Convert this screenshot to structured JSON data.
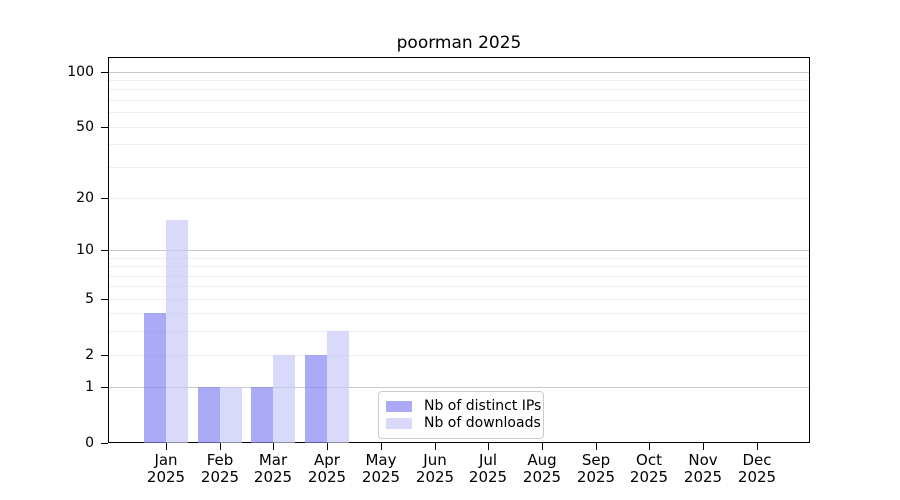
{
  "title": "poorman 2025",
  "chart_data": {
    "type": "bar",
    "title": "poorman 2025",
    "categories": [
      "Jan 2025",
      "Feb 2025",
      "Mar 2025",
      "Apr 2025",
      "May 2025",
      "Jun 2025",
      "Jul 2025",
      "Aug 2025",
      "Sep 2025",
      "Oct 2025",
      "Nov 2025",
      "Dec 2025"
    ],
    "months": [
      "Jan",
      "Feb",
      "Mar",
      "Apr",
      "May",
      "Jun",
      "Jul",
      "Aug",
      "Sep",
      "Oct",
      "Nov",
      "Dec"
    ],
    "year_label": "2025",
    "series": [
      {
        "name": "Nb of distinct IPs",
        "color": "rgba(134,134,242,0.7)",
        "values": [
          4,
          1,
          1,
          2,
          0,
          0,
          0,
          0,
          0,
          0,
          0,
          0
        ]
      },
      {
        "name": "Nb of downloads",
        "color": "rgba(201,201,248,0.7)",
        "values": [
          15,
          1,
          2,
          3,
          0,
          0,
          0,
          0,
          0,
          0,
          0,
          0
        ]
      }
    ],
    "xlabel": "",
    "ylabel": "",
    "y_axis": {
      "scale": "log10(value+1)",
      "ylim": [
        0,
        120
      ],
      "tick_labels": [
        0,
        1,
        2,
        5,
        10,
        20,
        50,
        100
      ],
      "major_gridlines": [
        1,
        10,
        100
      ],
      "minor_gridlines": [
        2,
        3,
        4,
        5,
        6,
        7,
        8,
        9,
        20,
        30,
        40,
        50,
        60,
        70,
        80,
        90
      ],
      "grid": "on"
    },
    "legend": {
      "position": "lower center",
      "entries": [
        "Nb of distinct IPs",
        "Nb of downloads"
      ]
    }
  }
}
